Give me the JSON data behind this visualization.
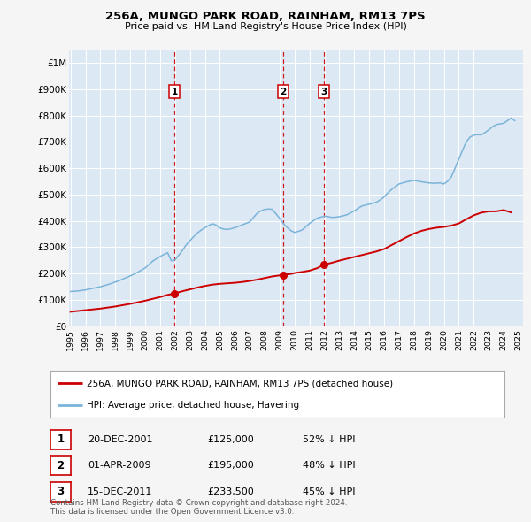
{
  "title": "256A, MUNGO PARK ROAD, RAINHAM, RM13 7PS",
  "subtitle": "Price paid vs. HM Land Registry's House Price Index (HPI)",
  "background_color": "#f5f5f5",
  "plot_bg_color": "#dde8f5",
  "ylim": [
    0,
    1050000
  ],
  "yticks": [
    0,
    100000,
    200000,
    300000,
    400000,
    500000,
    600000,
    700000,
    800000,
    900000,
    1000000
  ],
  "ytick_labels": [
    "£0",
    "£100K",
    "£200K",
    "£300K",
    "£400K",
    "£500K",
    "£600K",
    "£700K",
    "£800K",
    "£900K",
    "£1M"
  ],
  "sale_dates": [
    2001.97,
    2009.25,
    2011.96
  ],
  "sale_prices": [
    125000,
    195000,
    233500
  ],
  "sale_labels": [
    "1",
    "2",
    "3"
  ],
  "hpi_color": "#7ab4d8",
  "price_color": "#cc0000",
  "vline_color": "#cc0000",
  "legend_label_price": "256A, MUNGO PARK ROAD, RAINHAM, RM13 7PS (detached house)",
  "legend_label_hpi": "HPI: Average price, detached house, Havering",
  "table_rows": [
    [
      "1",
      "20-DEC-2001",
      "£125,000",
      "52% ↓ HPI"
    ],
    [
      "2",
      "01-APR-2009",
      "£195,000",
      "48% ↓ HPI"
    ],
    [
      "3",
      "15-DEC-2011",
      "£233,500",
      "45% ↓ HPI"
    ]
  ],
  "footer": "Contains HM Land Registry data © Crown copyright and database right 2024.\nThis data is licensed under the Open Government Licence v3.0.",
  "hpi_x": [
    1995.0,
    1995.25,
    1995.5,
    1995.75,
    1996.0,
    1996.25,
    1996.5,
    1996.75,
    1997.0,
    1997.25,
    1997.5,
    1997.75,
    1998.0,
    1998.25,
    1998.5,
    1998.75,
    1999.0,
    1999.25,
    1999.5,
    1999.75,
    2000.0,
    2000.25,
    2000.5,
    2000.75,
    2001.0,
    2001.25,
    2001.5,
    2001.75,
    2002.0,
    2002.25,
    2002.5,
    2002.75,
    2003.0,
    2003.25,
    2003.5,
    2003.75,
    2004.0,
    2004.25,
    2004.5,
    2004.75,
    2005.0,
    2005.25,
    2005.5,
    2005.75,
    2006.0,
    2006.25,
    2006.5,
    2006.75,
    2007.0,
    2007.25,
    2007.5,
    2007.75,
    2008.0,
    2008.25,
    2008.5,
    2008.75,
    2009.0,
    2009.25,
    2009.5,
    2009.75,
    2010.0,
    2010.25,
    2010.5,
    2010.75,
    2011.0,
    2011.25,
    2011.5,
    2011.75,
    2012.0,
    2012.25,
    2012.5,
    2012.75,
    2013.0,
    2013.25,
    2013.5,
    2013.75,
    2014.0,
    2014.25,
    2014.5,
    2014.75,
    2015.0,
    2015.25,
    2015.5,
    2015.75,
    2016.0,
    2016.25,
    2016.5,
    2016.75,
    2017.0,
    2017.25,
    2017.5,
    2017.75,
    2018.0,
    2018.25,
    2018.5,
    2018.75,
    2019.0,
    2019.25,
    2019.5,
    2019.75,
    2020.0,
    2020.25,
    2020.5,
    2020.75,
    2021.0,
    2021.25,
    2021.5,
    2021.75,
    2022.0,
    2022.25,
    2022.5,
    2022.75,
    2023.0,
    2023.25,
    2023.5,
    2023.75,
    2024.0,
    2024.25,
    2024.5,
    2024.75
  ],
  "hpi_y": [
    132000,
    133000,
    134000,
    136000,
    138000,
    141000,
    144000,
    147000,
    150000,
    154000,
    158000,
    163000,
    168000,
    173000,
    179000,
    185000,
    191000,
    198000,
    205000,
    213000,
    221000,
    234000,
    247000,
    256000,
    265000,
    272000,
    279000,
    248000,
    252000,
    270000,
    288000,
    309000,
    325000,
    340000,
    354000,
    365000,
    374000,
    382000,
    389000,
    384000,
    373000,
    369000,
    367000,
    370000,
    374000,
    379000,
    385000,
    390000,
    396000,
    413000,
    429000,
    438000,
    443000,
    445000,
    444000,
    427000,
    410000,
    390000,
    375000,
    363000,
    356000,
    360000,
    365000,
    377000,
    390000,
    400000,
    410000,
    414000,
    418000,
    416000,
    413000,
    414000,
    416000,
    419000,
    423000,
    430000,
    438000,
    447000,
    456000,
    460000,
    463000,
    467000,
    471000,
    480000,
    491000,
    506000,
    519000,
    530000,
    540000,
    544000,
    548000,
    551000,
    554000,
    551000,
    548000,
    546000,
    544000,
    543000,
    543000,
    544000,
    540000,
    550000,
    567000,
    600000,
    634000,
    668000,
    700000,
    718000,
    725000,
    727000,
    726000,
    735000,
    745000,
    757000,
    765000,
    768000,
    770000,
    780000,
    790000,
    780000
  ],
  "price_x": [
    1995.0,
    1995.5,
    1996.0,
    1996.5,
    1997.0,
    1997.5,
    1998.0,
    1998.5,
    1999.0,
    1999.5,
    2000.0,
    2000.5,
    2001.0,
    2001.5,
    2001.97,
    2002.5,
    2003.0,
    2003.5,
    2004.0,
    2004.5,
    2005.0,
    2005.5,
    2006.0,
    2006.5,
    2007.0,
    2007.5,
    2008.0,
    2008.5,
    2009.0,
    2009.25,
    2009.8,
    2010.0,
    2010.5,
    2011.0,
    2011.5,
    2011.96,
    2012.5,
    2013.0,
    2013.5,
    2014.0,
    2014.5,
    2015.0,
    2015.5,
    2016.0,
    2016.5,
    2017.0,
    2017.5,
    2018.0,
    2018.5,
    2019.0,
    2019.5,
    2020.0,
    2020.5,
    2021.0,
    2021.5,
    2022.0,
    2022.5,
    2023.0,
    2023.5,
    2024.0,
    2024.5
  ],
  "price_y": [
    55000,
    58000,
    61000,
    64000,
    67000,
    71000,
    75000,
    80000,
    85000,
    91000,
    97000,
    104000,
    111000,
    119000,
    125000,
    133000,
    140000,
    147000,
    153000,
    158000,
    161000,
    163000,
    165000,
    168000,
    172000,
    177000,
    183000,
    189000,
    193000,
    195000,
    199000,
    202000,
    206000,
    211000,
    220000,
    233500,
    241000,
    249000,
    256000,
    263000,
    270000,
    277000,
    284000,
    293000,
    308000,
    323000,
    338000,
    352000,
    362000,
    369000,
    374000,
    377000,
    382000,
    390000,
    406000,
    421000,
    431000,
    436000,
    436000,
    441000,
    432000
  ],
  "xtick_years": [
    1995,
    1996,
    1997,
    1998,
    1999,
    2000,
    2001,
    2002,
    2003,
    2004,
    2005,
    2006,
    2007,
    2008,
    2009,
    2010,
    2011,
    2012,
    2013,
    2014,
    2015,
    2016,
    2017,
    2018,
    2019,
    2020,
    2021,
    2022,
    2023,
    2024,
    2025
  ]
}
